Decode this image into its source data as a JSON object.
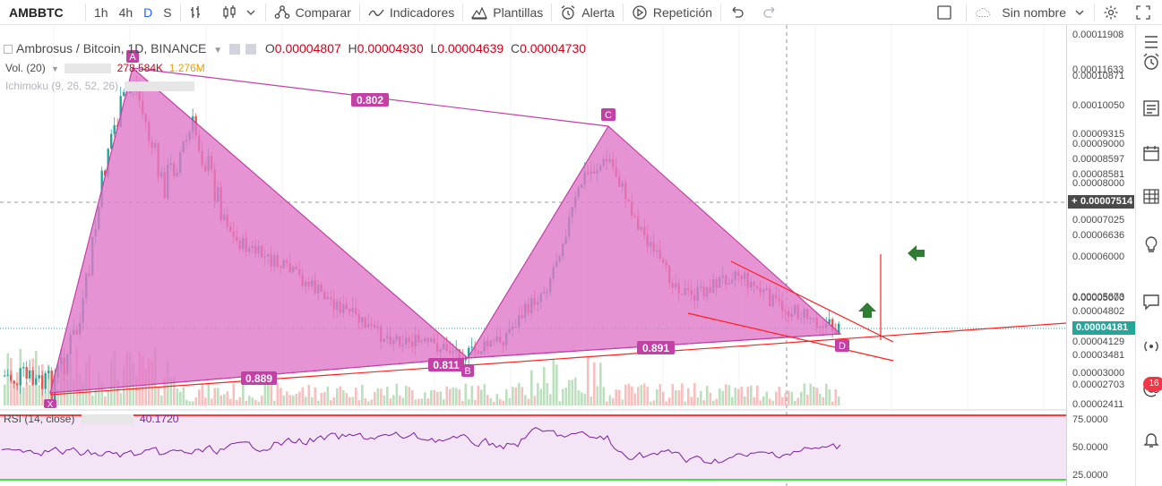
{
  "toolbar": {
    "symbol": "AMBBTC",
    "intervals": [
      "1h",
      "4h",
      "D",
      "S"
    ],
    "active_interval": "D",
    "compare_label": "Comparar",
    "indicators_label": "Indicadores",
    "templates_label": "Plantillas",
    "alert_label": "Alerta",
    "replay_label": "Repetición",
    "layout_name": "Sin nombre"
  },
  "legend": {
    "title": "Ambrosus / Bitcoin, 1D, BINANCE",
    "o_label": "O",
    "o_value": "0.00004807",
    "h_label": "H",
    "h_value": "0.00004930",
    "l_label": "L",
    "l_value": "0.00004639",
    "c_label": "C",
    "c_value": "0.00004730",
    "vol_label": "Vol. (20)",
    "vol_value1": "278.584K",
    "vol_value2": "1.276M",
    "ichimoku_label": "Ichimoku (9, 26, 52, 26)",
    "rsi_label": "RSI (14, close)",
    "rsi_value": "40.1720"
  },
  "pattern": {
    "points": [
      "X",
      "A",
      "B",
      "C",
      "D"
    ],
    "ratio_xb": "0.889",
    "ratio_ab": "0.811",
    "ratio_ac": "0.802",
    "ratio_bd": "0.891"
  },
  "price_axis": {
    "ticks": [
      "0.00011908",
      "0.00011633",
      "0.00010871",
      "0.00010050",
      "0.00009315",
      "0.00009000",
      "0.00008597",
      "0.00008581",
      "0.00008000",
      "0.00007025",
      "0.00006636",
      "0.00006000",
      "0.00005673",
      "0.00005000",
      "0.00004802",
      "0.00004129",
      "0.00003481",
      "0.00003000",
      "0.00002703",
      "0.00002411"
    ],
    "crosshair_price": "0.00007514",
    "last_price": "0.00004181"
  },
  "rsi_axis": {
    "ticks": [
      "75.0000",
      "50.0000",
      "25.0000"
    ]
  },
  "sidebar": {
    "badge": "16"
  },
  "colors": {
    "pattern_fill": "#e078c8",
    "pattern_stroke": "#c43fa6",
    "up": "#26a69a",
    "down": "#ef5350",
    "trend": "#ff0000",
    "rsi": "#7b1fa2",
    "rsi_band": "#f3e5f5",
    "arrow": "#2e7d32",
    "last_price": "#26a69a"
  }
}
